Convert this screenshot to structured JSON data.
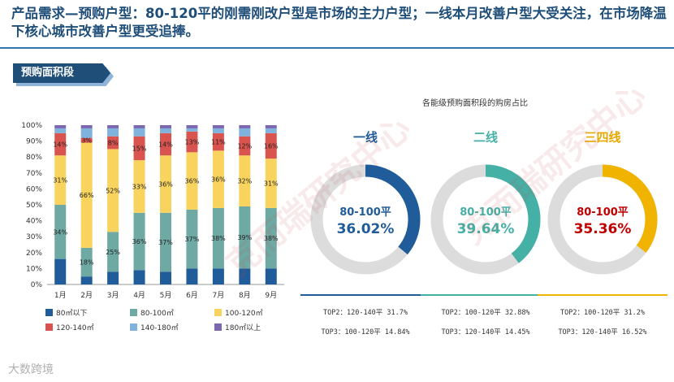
{
  "headline": "产品需求—预购户型：80-120平的刚需刚改户型是市场的主力户型；一线本月改善户型大受关注，在市场降温下核心城市改善户型更受追捧。",
  "section_tag": "预购面积段",
  "watermark_text": "克而瑞研究中心",
  "footer_brand": "大数跨境",
  "chart_data": [
    {
      "type": "bar",
      "stacked": true,
      "title": "",
      "categories": [
        "1月",
        "2月",
        "3月",
        "4月",
        "5月",
        "6月",
        "7月",
        "8月",
        "9月"
      ],
      "yticks": [
        "0%",
        "10%",
        "20%",
        "30%",
        "40%",
        "50%",
        "60%",
        "70%",
        "80%",
        "90%",
        "100%"
      ],
      "ylim": [
        0,
        100
      ],
      "series": [
        {
          "name": "80㎡以下",
          "color": "#1f5c99",
          "values": [
            16,
            5,
            8,
            9,
            8,
            10,
            10,
            10,
            10
          ]
        },
        {
          "name": "80-100㎡",
          "color": "#6ea9a3",
          "values": [
            34,
            18,
            25,
            36,
            37,
            37,
            38,
            39,
            38
          ]
        },
        {
          "name": "100-120㎡",
          "color": "#f8d35e",
          "values": [
            31,
            66,
            52,
            33,
            36,
            36,
            36,
            32,
            31
          ]
        },
        {
          "name": "120-140㎡",
          "color": "#d9534f",
          "values": [
            14,
            3,
            8,
            15,
            14,
            13,
            11,
            12,
            16
          ]
        },
        {
          "name": "140-180㎡",
          "color": "#7fb2dd",
          "values": [
            3,
            6,
            5,
            5,
            3,
            2,
            3,
            5,
            3
          ]
        },
        {
          "name": "180㎡以上",
          "color": "#7b68b0",
          "values": [
            2,
            2,
            2,
            2,
            2,
            2,
            2,
            2,
            2
          ]
        }
      ],
      "labels": {
        "80-100㎡": [
          "34%",
          "18%",
          "25%",
          "36%",
          "37%",
          "37%",
          "38%",
          "39%",
          "38%"
        ],
        "100-120㎡": [
          "31%",
          "66%",
          "52%",
          "33%",
          "36%",
          "36%",
          "36%",
          "32%",
          "31%"
        ],
        "120-140㎡": [
          "14%",
          "3%",
          "8%",
          "15%",
          "14%",
          "13%",
          "11%",
          "12%",
          "16%"
        ]
      }
    },
    {
      "type": "pie",
      "title": "各能级预购面积段的购房占比",
      "donuts": [
        {
          "city": "一线",
          "color": "#1f5c99",
          "name_color": "#1f5c99",
          "range": "80-100平",
          "percent_label": "36.02%",
          "value": 36.02,
          "top2": "TOP2：120-140平  31.7%",
          "top3": "TOP3：100-120平  14.84%"
        },
        {
          "city": "二线",
          "color": "#45b0a6",
          "name_color": "#45b0a6",
          "range": "80-100平",
          "percent_label": "39.64%",
          "value": 39.64,
          "top2": "TOP2：100-120平  32.88%",
          "top3": "TOP3：120-140平  14.45%"
        },
        {
          "city": "三四线",
          "color": "#f0b400",
          "name_color": "#e6a800",
          "range": "80-100平",
          "percent_label": "35.36%",
          "value": 35.36,
          "top2": "TOP2：100-120平  31.2%",
          "top3": "TOP3：120-140平  16.52%"
        }
      ]
    }
  ]
}
